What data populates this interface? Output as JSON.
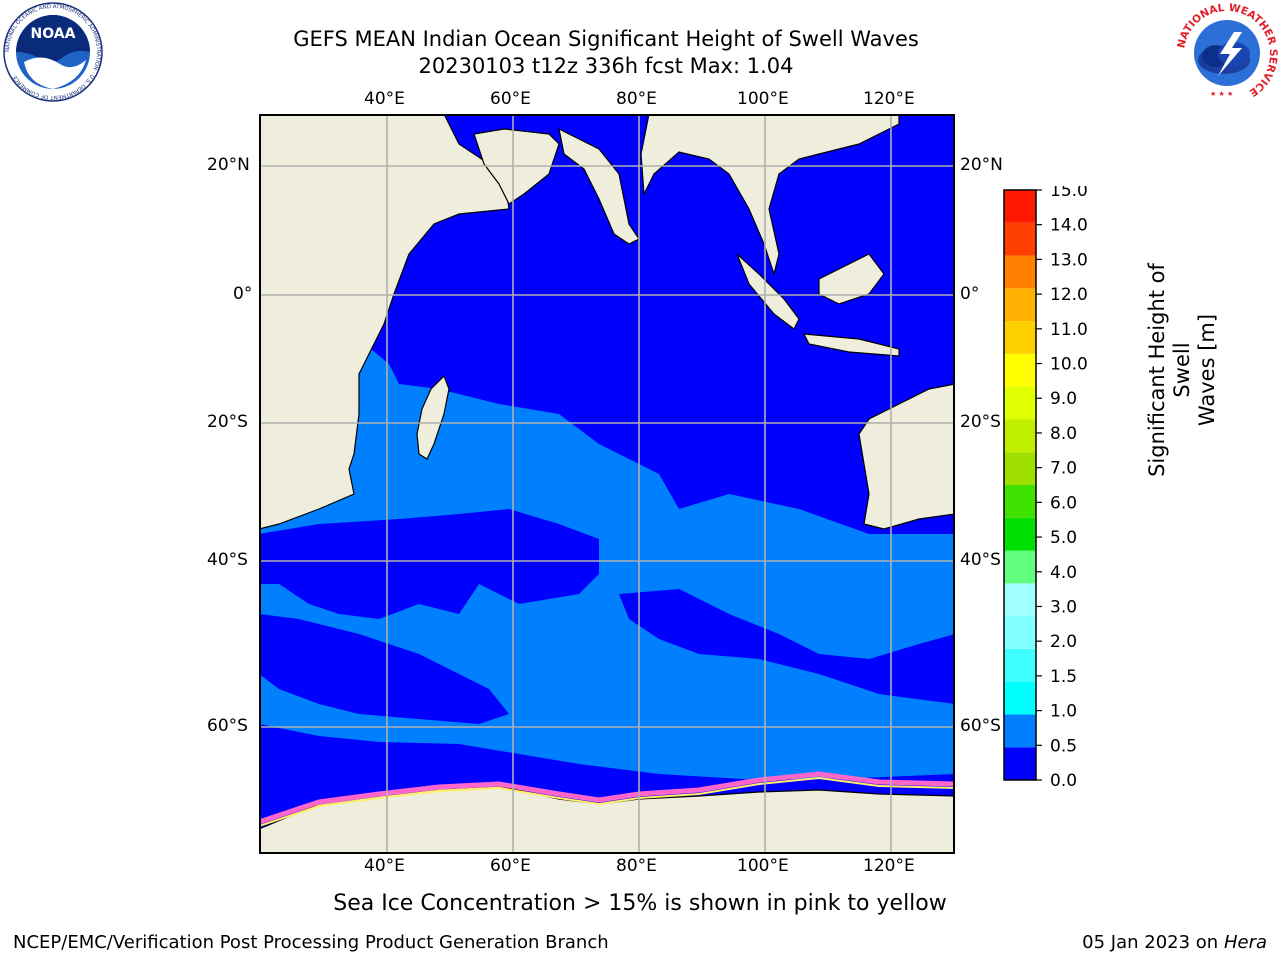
{
  "header": {
    "title_line1": "GEFS MEAN Indian Ocean Significant Height of Swell Waves",
    "title_line2": "20230103 t12z 336h fcst   Max: 1.04"
  },
  "logos": {
    "noaa_text": "NOAA",
    "noaa_ring_text": "NATIONAL OCEANIC AND ATMOSPHERIC ADMINISTRATION · U.S. DEPARTMENT OF COMMERCE",
    "nws_ring_text": "NATIONAL WEATHER SERVICE"
  },
  "map": {
    "lon_ticks": [
      "40°E",
      "60°E",
      "80°E",
      "100°E",
      "120°E"
    ],
    "lat_ticks_left": [
      "20°N",
      "0°",
      "20°S",
      "40°S",
      "60°S"
    ],
    "lat_ticks_right": [
      "20°N",
      "0°",
      "20°S",
      "40°S",
      "60°S"
    ]
  },
  "colorbar": {
    "label_line1": "Significant Height of Swell",
    "label_line2": "Waves [m]",
    "ticks": [
      "0.0",
      "0.5",
      "1.0",
      "1.5",
      "2.0",
      "3.0",
      "4.0",
      "5.0",
      "6.0",
      "7.0",
      "8.0",
      "9.0",
      "10.0",
      "11.0",
      "12.0",
      "13.0",
      "14.0",
      "15.0"
    ],
    "colors": [
      "#0000ff",
      "#0080ff",
      "#00ffff",
      "#40ffff",
      "#80ffff",
      "#a0ffff",
      "#60ff80",
      "#00e000",
      "#40e000",
      "#a0e000",
      "#c0f000",
      "#e0ff00",
      "#ffff00",
      "#ffd000",
      "#ffb000",
      "#ff8000",
      "#ff4000",
      "#ff1800"
    ]
  },
  "footer": {
    "ice_note": "Sea Ice Concentration > 15% is shown in pink to yellow",
    "branch": "NCEP/EMC/Verification Post Processing Product Generation Branch",
    "date": "05 Jan 2023 on ",
    "host": "Hera"
  }
}
